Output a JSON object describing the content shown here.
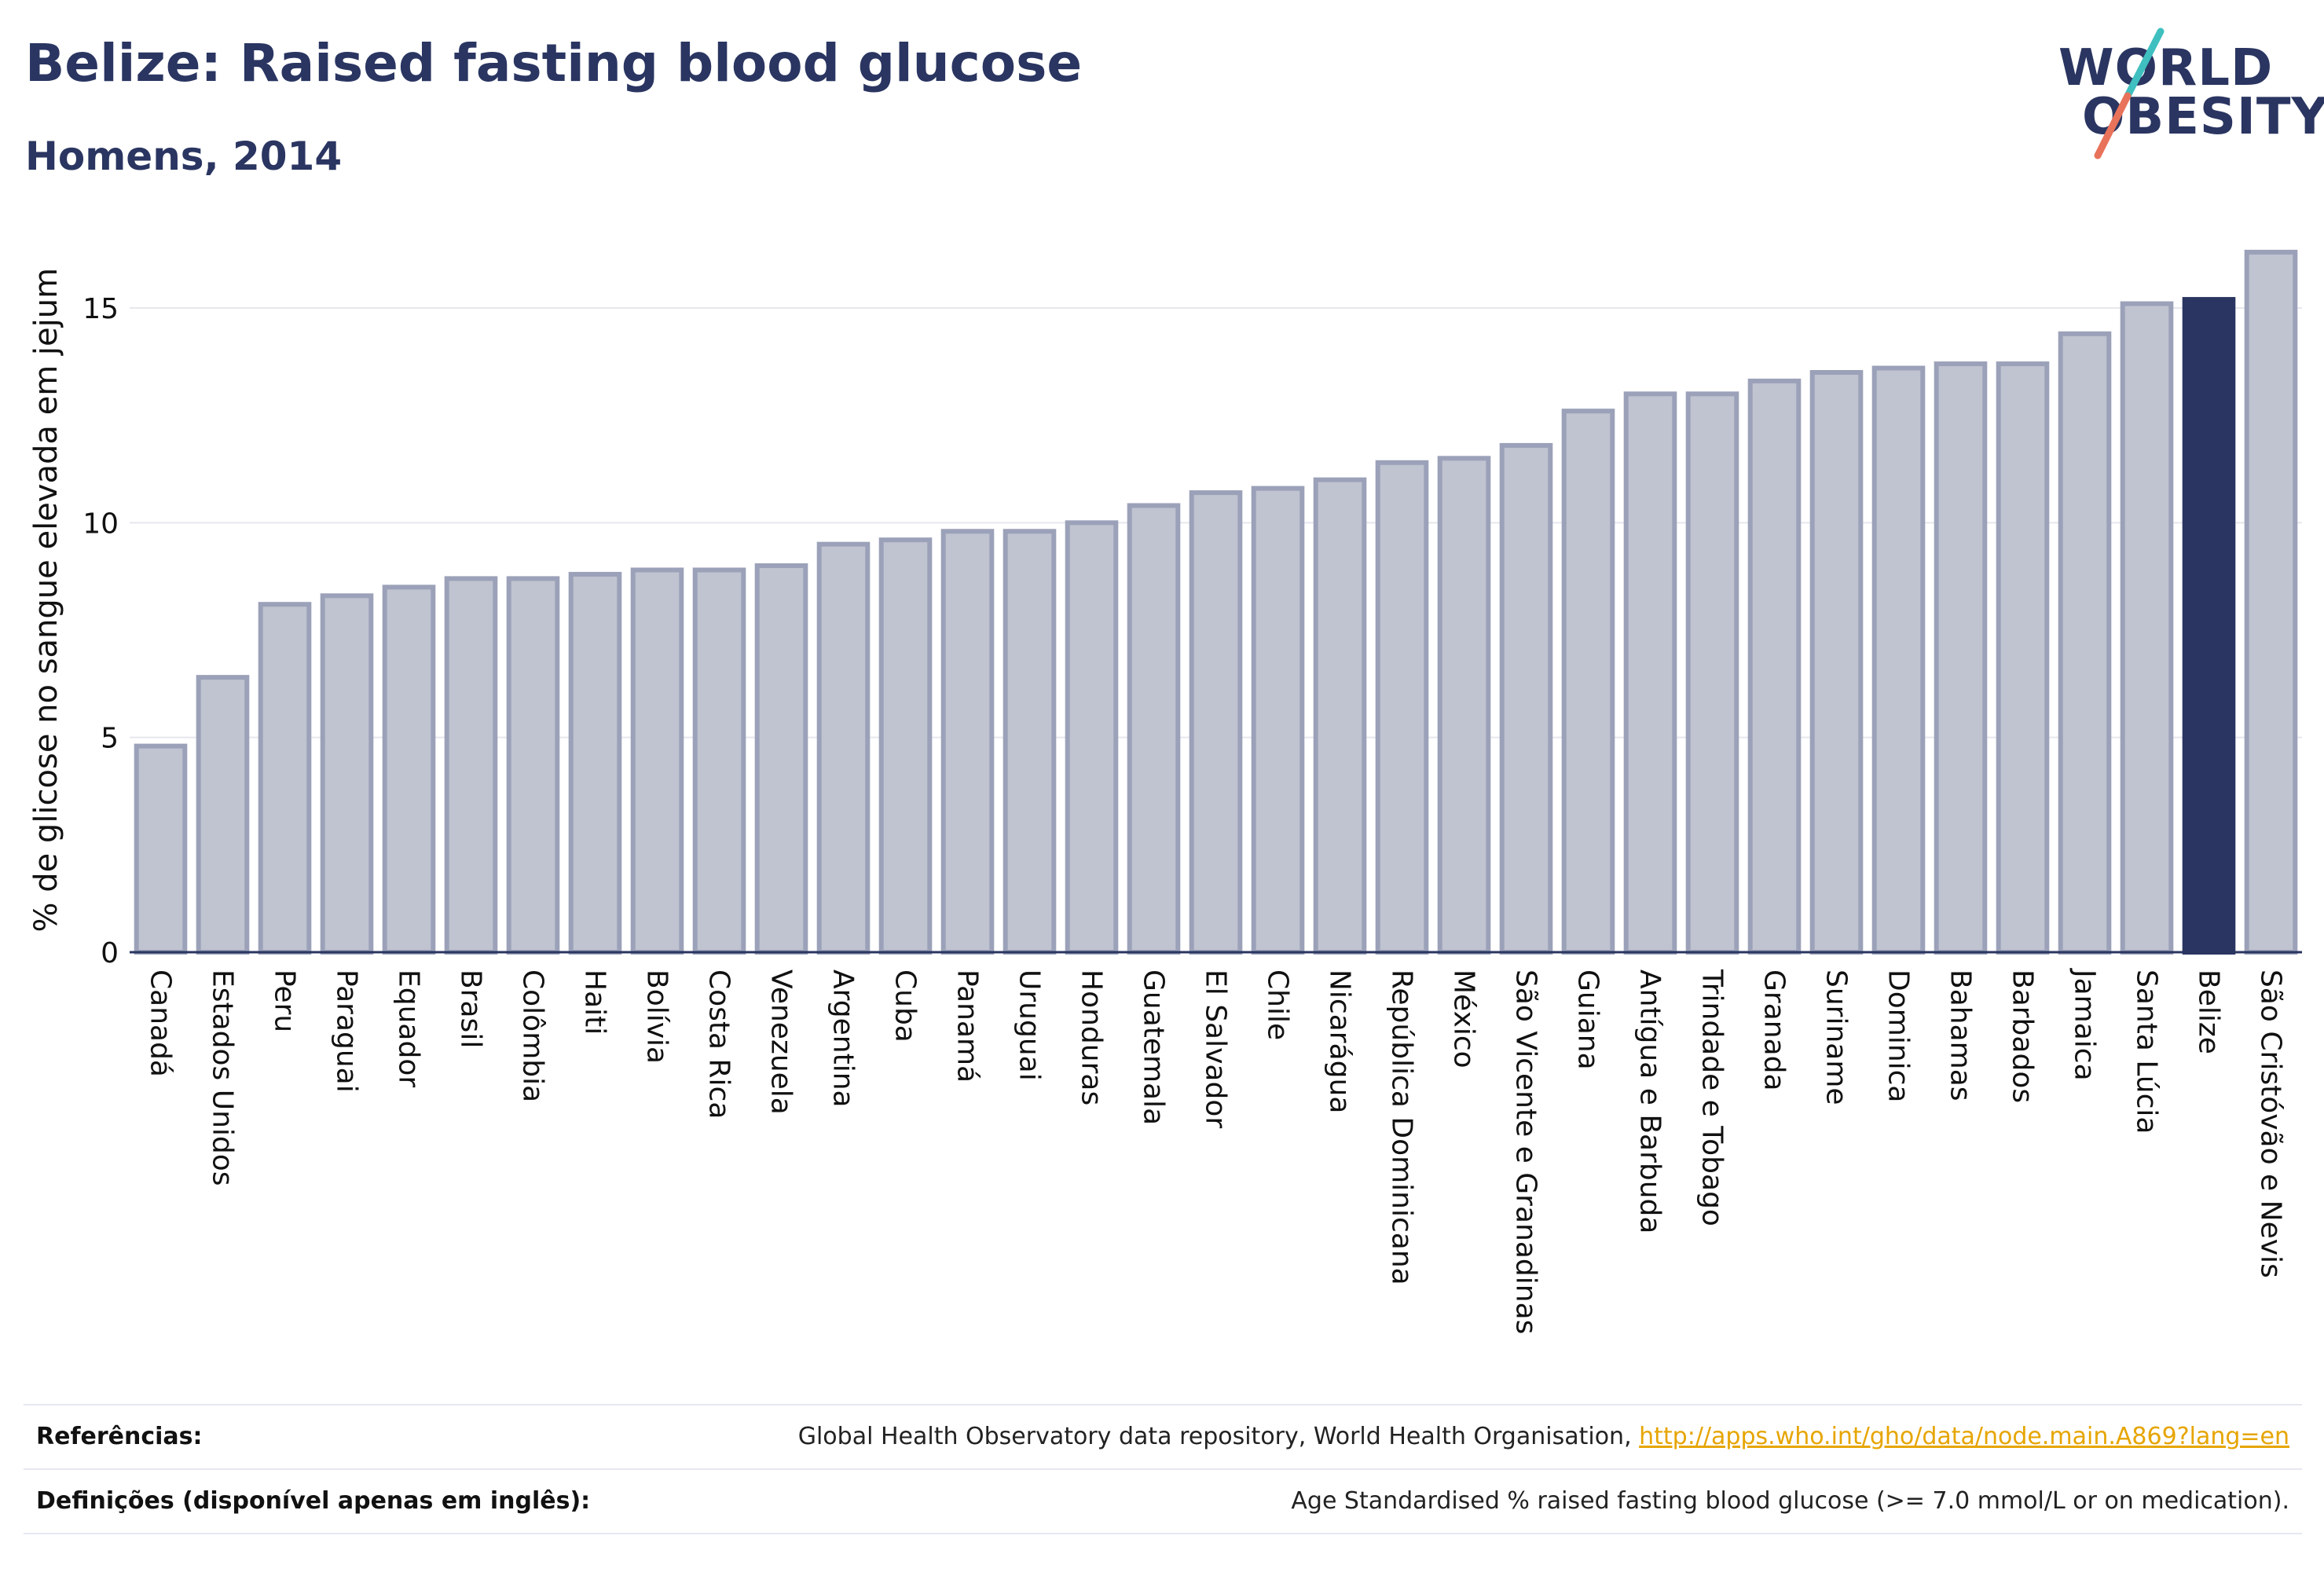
{
  "header": {
    "title": "Belize: Raised fasting blood glucose",
    "subtitle": "Homens, 2014"
  },
  "logo": {
    "line1": "WORLD",
    "line2": "OBESITY",
    "accent_teal": "#3fbfbf",
    "accent_coral": "#e8735a"
  },
  "colors": {
    "bar_fill": "#c0c3d0",
    "bar_stroke": "#9ba1b8",
    "highlight": "#2a3561",
    "grid": "#e6e8ee",
    "axis": "#2a3561"
  },
  "chart_data": {
    "type": "bar",
    "ylabel": "% de glicose no sangue elevada em jejum",
    "ylim": [
      0,
      16.5
    ],
    "yticks": [
      0,
      5,
      10,
      15
    ],
    "grid": true,
    "highlight": "Belize",
    "categories": [
      "Canadá",
      "Estados Unidos",
      "Peru",
      "Paraguai",
      "Equador",
      "Brasil",
      "Colômbia",
      "Haiti",
      "Bolívia",
      "Costa Rica",
      "Venezuela",
      "Argentina",
      "Cuba",
      "Panamá",
      "Uruguai",
      "Honduras",
      "Guatemala",
      "El Salvador",
      "Chile",
      "Nicarágua",
      "República Dominicana",
      "México",
      "São Vicente e Granadinas",
      "Guiana",
      "Antígua e Barbuda",
      "Trindade e Tobago",
      "Granada",
      "Suriname",
      "Dominica",
      "Bahamas",
      "Barbados",
      "Jamaica",
      "Santa Lúcia",
      "Belize",
      "São Cristóvão e Nevis"
    ],
    "values": [
      4.8,
      6.4,
      8.1,
      8.3,
      8.5,
      8.7,
      8.7,
      8.8,
      8.9,
      8.9,
      9.0,
      9.5,
      9.6,
      9.8,
      9.8,
      10.0,
      10.4,
      10.7,
      10.8,
      11.0,
      11.4,
      11.5,
      11.8,
      12.6,
      13.0,
      13.0,
      13.3,
      13.5,
      13.6,
      13.7,
      13.7,
      14.4,
      15.1,
      15.2,
      16.3
    ]
  },
  "footer": {
    "references_label": "Referências:",
    "references_text": "Global Health Observatory data repository, World Health Organisation, ",
    "references_link": "http://apps.who.int/gho/data/node.main.A869?lang=en",
    "definitions_label": "Definições (disponível apenas em inglês):",
    "definitions_text": "Age Standardised % raised fasting blood glucose (>= 7.0 mmol/L or on medication)."
  }
}
